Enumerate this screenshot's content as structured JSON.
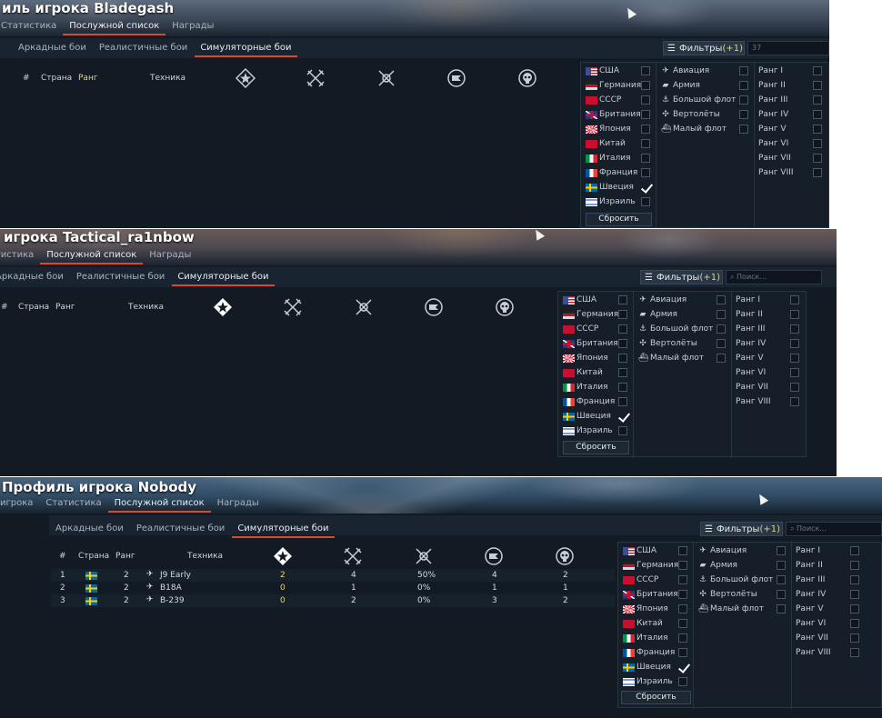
{
  "panels": [
    {
      "title": "иль игрока Bladegash",
      "tabs": [
        "Статистика",
        "Послужной список",
        "Награды"
      ],
      "active_tab": 1,
      "modes": [
        "Аркадные бои",
        "Реалистичные бои",
        "Симуляторные бои"
      ],
      "active_mode": 2,
      "filter_label": "Фильтры",
      "filter_count": "(+1)",
      "search_value": "37",
      "headers": {
        "num": "#",
        "country": "Страна",
        "rank": "Ранг",
        "vehicle": "Техника"
      },
      "reset_label": "Сбросить"
    },
    {
      "title": "игрока Tactical_ra1nbow",
      "tabs": [
        "Статистика",
        "Послужной список",
        "Награды"
      ],
      "active_tab": 1,
      "modes": [
        "Аркадные бои",
        "Реалистичные бои",
        "Симуляторные бои"
      ],
      "active_mode": 2,
      "filter_label": "Фильтры",
      "filter_count": "(+1)",
      "search_placeholder": "Поиск...",
      "headers": {
        "num": "#",
        "country": "Страна",
        "rank": "Ранг",
        "vehicle": "Техника"
      },
      "reset_label": "Сбросить"
    },
    {
      "title": "Профиль игрока Nobody",
      "tabs": [
        "игрока",
        "Статистика",
        "Послужной список",
        "Награды"
      ],
      "active_tab": 2,
      "modes": [
        "Аркадные бои",
        "Реалистичные бои",
        "Симуляторные бои"
      ],
      "active_mode": 2,
      "filter_label": "Фильтры",
      "filter_count": "(+1)",
      "search_placeholder": "Поиск...",
      "headers": {
        "num": "#",
        "country": "Страна",
        "rank": "Ранг",
        "vehicle": "Техника"
      },
      "reset_label": "Сбросить",
      "rows": [
        {
          "num": "1",
          "country_flag": "sweden",
          "rank": "2",
          "vehicle": "J9 Early",
          "c1": "2",
          "c2": "4",
          "c3": "50%",
          "c4": "4",
          "c5": "2"
        },
        {
          "num": "2",
          "country_flag": "sweden",
          "rank": "2",
          "vehicle": "B18A",
          "c1": "0",
          "c2": "1",
          "c3": "0%",
          "c4": "1",
          "c5": "1"
        },
        {
          "num": "3",
          "country_flag": "sweden",
          "rank": "2",
          "vehicle": "B-239",
          "c1": "0",
          "c2": "2",
          "c3": "0%",
          "c4": "3",
          "c5": "2"
        }
      ]
    }
  ],
  "countries": [
    {
      "label": "США",
      "flag": "usa",
      "checked": false
    },
    {
      "label": "Германия",
      "flag": "ger",
      "checked": false
    },
    {
      "label": "СССР",
      "flag": "ussr",
      "checked": false
    },
    {
      "label": "Британия",
      "flag": "uk",
      "checked": false
    },
    {
      "label": "Япония",
      "flag": "jap",
      "checked": false
    },
    {
      "label": "Китай",
      "flag": "chi",
      "checked": false
    },
    {
      "label": "Италия",
      "flag": "ita",
      "checked": false
    },
    {
      "label": "Франция",
      "flag": "fra",
      "checked": false
    },
    {
      "label": "Швеция",
      "flag": "swe",
      "checked": true
    },
    {
      "label": "Израиль",
      "flag": "isr",
      "checked": false
    }
  ],
  "types": [
    {
      "label": "Авиация",
      "icon": "plane-icon"
    },
    {
      "label": "Армия",
      "icon": "tank-icon"
    },
    {
      "label": "Большой флот",
      "icon": "ship-icon"
    },
    {
      "label": "Вертолёты",
      "icon": "helicopter-icon"
    },
    {
      "label": "Малый флот",
      "icon": "boat-icon"
    }
  ],
  "ranks": [
    "Ранг I",
    "Ранг II",
    "Ранг III",
    "Ранг IV",
    "Ранг V",
    "Ранг VI",
    "Ранг VII",
    "Ранг VIII"
  ],
  "colors": {
    "accent": "#d84a2a",
    "gold": "#e9d27a",
    "bg": "#121a24"
  }
}
